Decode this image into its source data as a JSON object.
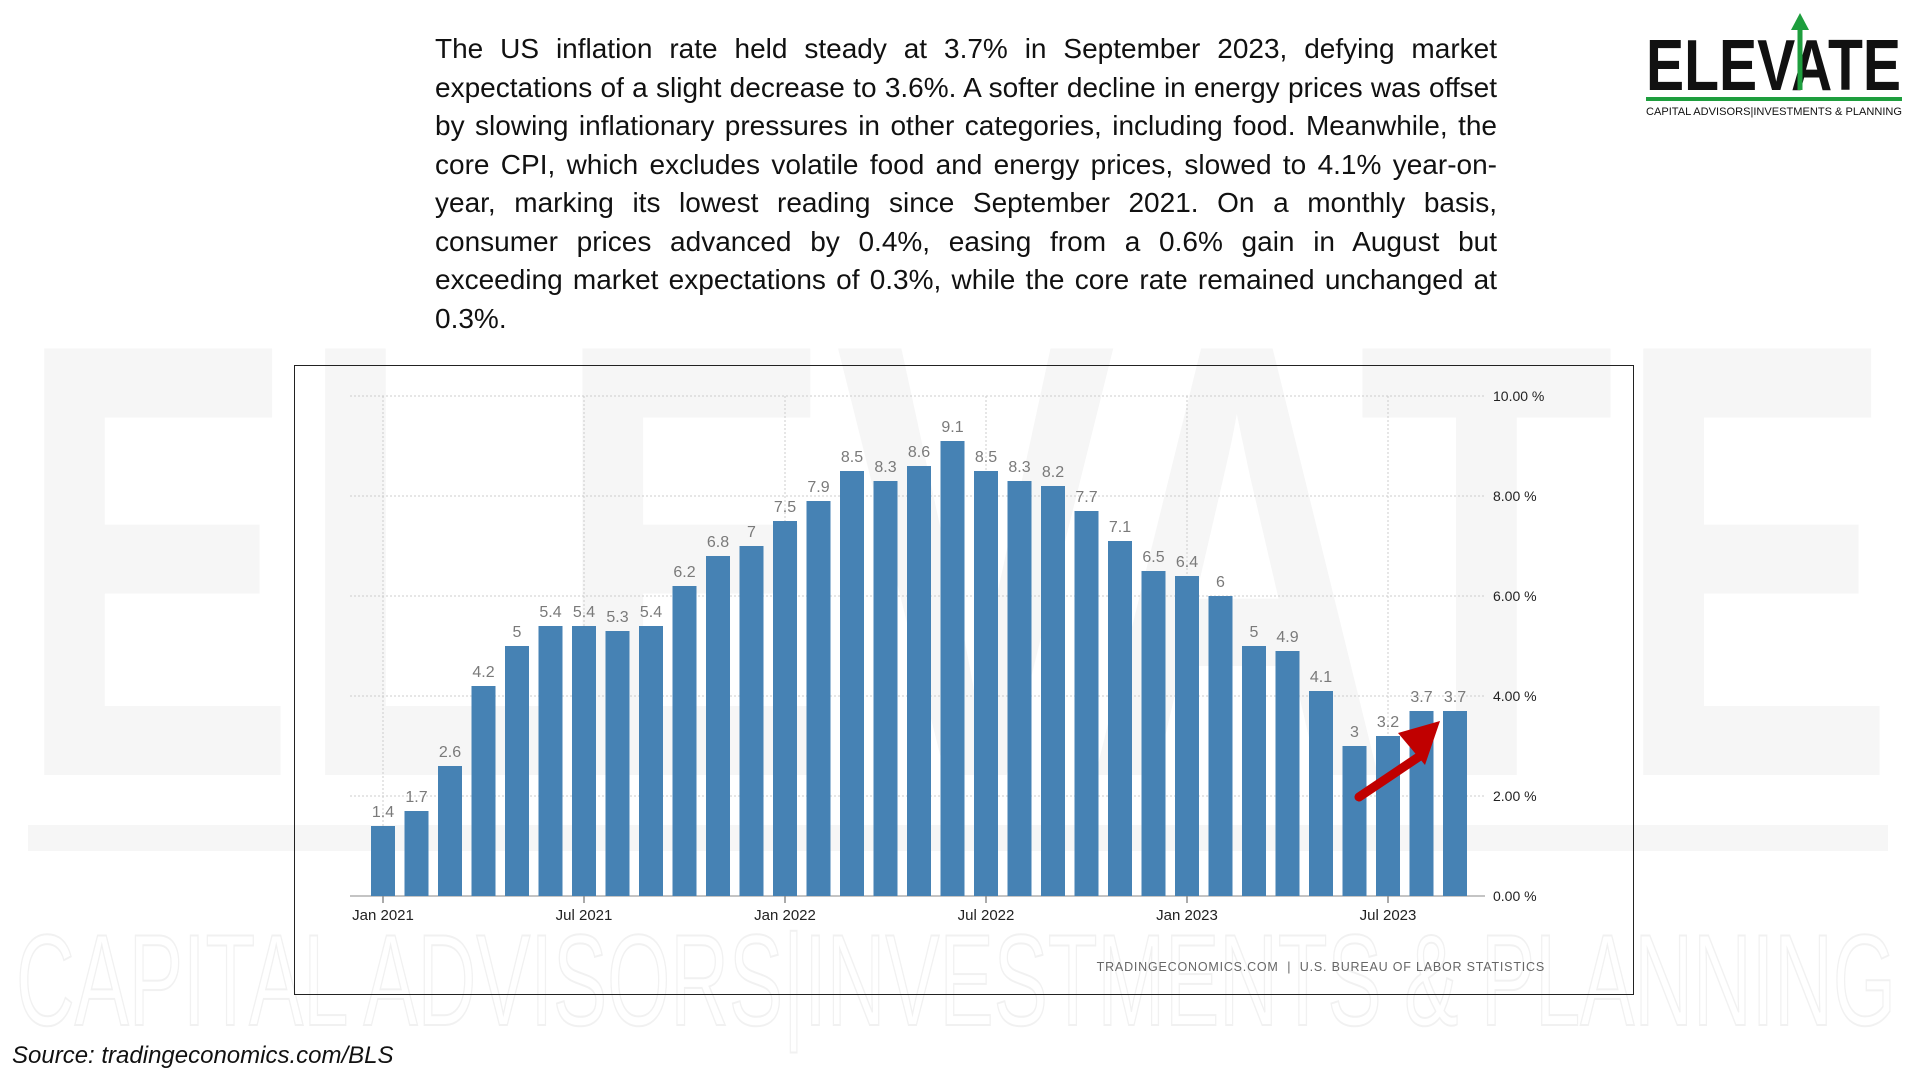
{
  "text": "The US inflation rate held steady at 3.7% in September 2023, defying market expectations of a slight decrease to 3.6%. A softer decline in energy prices was offset by slowing inflationary pressures in other categories, including food. Meanwhile, the core CPI, which excludes volatile food and energy prices, slowed to 4.1% year-on-year, marking its lowest reading since September 2021. On a monthly basis, consumer prices advanced by 0.4%, easing from a 0.6% gain in August but exceeding market expectations of 0.3%, while the core rate remained unchanged at 0.3%.",
  "logo": {
    "name": "ELEVATE",
    "tagline": "CAPITAL ADVISORS|INVESTMENTS & PLANNING"
  },
  "watermark": {
    "word": "ELEVATE",
    "tagline": "CAPITAL ADVISORS|INVESTMENTS & PLANNING"
  },
  "source": "Source: tradingeconomics.com/BLS",
  "colors": {
    "bar": "#4682b4",
    "label": "#7a7a7a",
    "grid": "#cccccc",
    "arrow": "#c00000",
    "logo_green": "#1e9e3e"
  },
  "chart_data": {
    "type": "bar",
    "categories": [
      "Jan 2021",
      "Feb 2021",
      "Mar 2021",
      "Apr 2021",
      "May 2021",
      "Jun 2021",
      "Jul 2021",
      "Aug 2021",
      "Sep 2021",
      "Oct 2021",
      "Nov 2021",
      "Dec 2021",
      "Jan 2022",
      "Feb 2022",
      "Mar 2022",
      "Apr 2022",
      "May 2022",
      "Jun 2022",
      "Jul 2022",
      "Aug 2022",
      "Sep 2022",
      "Oct 2022",
      "Nov 2022",
      "Dec 2022",
      "Jan 2023",
      "Feb 2023",
      "Mar 2023",
      "Apr 2023",
      "May 2023",
      "Jun 2023",
      "Jul 2023",
      "Aug 2023",
      "Sep 2023"
    ],
    "values": [
      1.4,
      1.7,
      2.6,
      4.2,
      5,
      5.4,
      5.4,
      5.3,
      5.4,
      6.2,
      6.8,
      7,
      7.5,
      7.9,
      8.5,
      8.3,
      8.6,
      9.1,
      8.5,
      8.3,
      8.2,
      7.7,
      7.1,
      6.5,
      6.4,
      6,
      5,
      4.9,
      4.1,
      3,
      3.2,
      3.7,
      3.7
    ],
    "value_labels": [
      "1.4",
      "1.7",
      "2.6",
      "4.2",
      "5",
      "5.4",
      "5.4",
      "5.3",
      "5.4",
      "6.2",
      "6.8",
      "7",
      "7.5",
      "7.9",
      "8.5",
      "8.3",
      "8.6",
      "9.1",
      "8.5",
      "8.3",
      "8.2",
      "7.7",
      "7.1",
      "6.5",
      "6.4",
      "6",
      "5",
      "4.9",
      "4.1",
      "3",
      "3.2",
      "3.7",
      "3.7"
    ],
    "x_ticks": [
      {
        "index": 0,
        "label": "Jan 2021"
      },
      {
        "index": 6,
        "label": "Jul 2021"
      },
      {
        "index": 12,
        "label": "Jan 2022"
      },
      {
        "index": 18,
        "label": "Jul 2022"
      },
      {
        "index": 24,
        "label": "Jan 2023"
      },
      {
        "index": 30,
        "label": "Jul 2023"
      }
    ],
    "y_ticks": [
      {
        "value": 0,
        "label": "0.00 %"
      },
      {
        "value": 2,
        "label": "2.00 %"
      },
      {
        "value": 4,
        "label": "4.00 %"
      },
      {
        "value": 6,
        "label": "6.00 %"
      },
      {
        "value": 8,
        "label": "8.00 %"
      },
      {
        "value": 10,
        "label": "10.00 %"
      }
    ],
    "ylim": [
      0,
      10
    ],
    "grid": true,
    "y_axis_position": "right",
    "annotation": "red arrow pointing up toward the latest bar (Sep 2023)",
    "credit": "TRADINGECONOMICS.COM  |  U.S. BUREAU OF LABOR STATISTICS"
  }
}
